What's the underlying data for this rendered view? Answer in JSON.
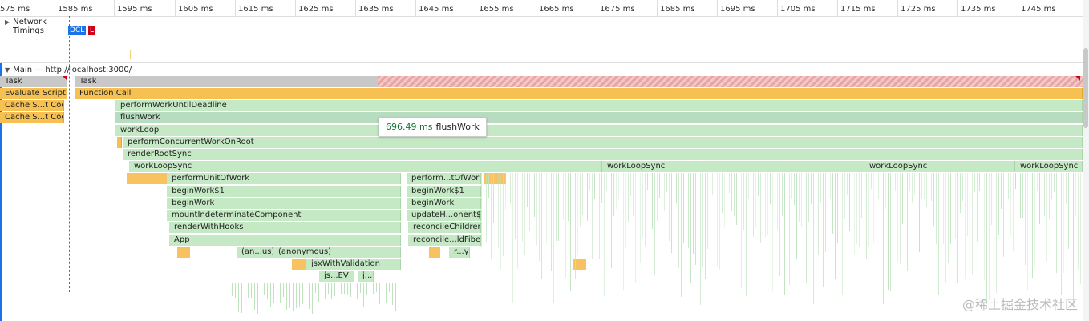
{
  "ruler": {
    "ticks": [
      "575 ms",
      "1585 ms",
      "1595 ms",
      "1605 ms",
      "1615 ms",
      "1625 ms",
      "1635 ms",
      "1645 ms",
      "1655 ms",
      "1665 ms",
      "1675 ms",
      "1685 ms",
      "1695 ms",
      "1705 ms",
      "1715 ms",
      "1725 ms",
      "1735 ms",
      "1745 ms"
    ]
  },
  "network": {
    "label_line1": "Network",
    "label_line2": "Timings",
    "dcl": "DCL",
    "l": "L"
  },
  "main": {
    "title": "Main — http://localhost:3000/"
  },
  "flame": {
    "task_a": "Task",
    "task_b": "Task",
    "evaluate_script": "Evaluate Script",
    "function_call": "Function Call",
    "cache_1": "Cache S...t Code",
    "cache_2": "Cache S...t Code",
    "perform_work_until_deadline": "performWorkUntilDeadline",
    "flush_work": "flushWork",
    "work_loop": "workLoop",
    "perform_concurrent": "performConcurrentWorkOnRoot",
    "render_root_sync": "renderRootSync",
    "work_loop_sync_1": "workLoopSync",
    "work_loop_sync_2": "workLoopSync",
    "work_loop_sync_3": "workLoopSync",
    "work_loop_sync_4": "workLoopSync",
    "perform_unit_of_work": "performUnitOfWork",
    "begin_work_1": "beginWork$1",
    "begin_work": "beginWork",
    "mount_indeterminate": "mountIndeterminateComponent",
    "render_with_hooks": "renderWithHooks",
    "app": "App",
    "anon_us": "(an...us)",
    "anonymous": "(anonymous)",
    "jsx_with_validation": "jsxWithValidation",
    "js_ev": "js...EV",
    "j": "j...",
    "perform_t_of_work": "perform...tOfWork",
    "begin_work_1_b": "beginWork$1",
    "begin_work_b": "beginWork",
    "update_h_onent": "updateH...onent$1",
    "reconcile_children": "reconcileChildren",
    "reconcile_ld_fibers": "reconcile...ldFibers",
    "r_y": "r...y"
  },
  "tooltip": {
    "time": "696.49 ms",
    "name": "flushWork"
  },
  "watermark": "@稀土掘金技术社区",
  "colors": {
    "task": "#c8c8c8",
    "scripting": "#f6c152",
    "react": "#c4e9c4",
    "long_task": "#e8a5a5",
    "dcl": "#1a73e8",
    "load": "#d0021b"
  }
}
